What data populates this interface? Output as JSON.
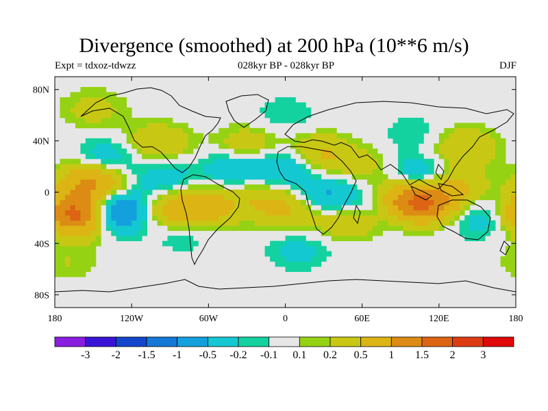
{
  "title": "Divergence (smoothed) at 200 hPa (10**6 m/s)",
  "left_string": "Expt = tdxoz-tdwzz",
  "center_string": "028kyr BP - 028kyr BP",
  "right_string": "DJF",
  "chart_data": {
    "type": "heatmap",
    "title": "Divergence (smoothed) at 200 hPa (10**6 m/s)",
    "xlabel": "",
    "ylabel": "",
    "x_range": [
      -180,
      180
    ],
    "y_range": [
      -90,
      90
    ],
    "x_ticks": [
      {
        "value": -180,
        "label": "180"
      },
      {
        "value": -120,
        "label": "120W"
      },
      {
        "value": -60,
        "label": "60W"
      },
      {
        "value": 0,
        "label": "0"
      },
      {
        "value": 60,
        "label": "60E"
      },
      {
        "value": 120,
        "label": "120E"
      },
      {
        "value": 180,
        "label": "180"
      }
    ],
    "y_ticks": [
      {
        "value": 80,
        "label": "80N"
      },
      {
        "value": 40,
        "label": "40N"
      },
      {
        "value": 0,
        "label": "0"
      },
      {
        "value": -40,
        "label": "40S"
      },
      {
        "value": -80,
        "label": "80S"
      }
    ],
    "colorbar": {
      "colors": [
        "#8a1ee0",
        "#3a14d6",
        "#1446cc",
        "#1478d6",
        "#14a0dc",
        "#14c8d2",
        "#14d2a0",
        "#e6e6e6",
        "#96d214",
        "#c8c814",
        "#dcb414",
        "#dc8c14",
        "#dc6414",
        "#dc3c14",
        "#e00a0a"
      ],
      "labels": [
        "-3",
        "-2",
        "-1.5",
        "-1",
        "-0.5",
        "-0.2",
        "-0.1",
        "0.1",
        "0.2",
        "0.5",
        "1",
        "1.5",
        "2",
        "3"
      ]
    },
    "anomaly_field": [
      {
        "lon": -160,
        "lat": -17,
        "value": 2.0
      },
      {
        "lon": -135,
        "lat": -15,
        "value": -1.5
      },
      {
        "lon": -150,
        "lat": 8,
        "value": 1.2
      },
      {
        "lon": -140,
        "lat": 25,
        "value": -0.5
      },
      {
        "lon": -150,
        "lat": 65,
        "value": 0.3
      },
      {
        "lon": -100,
        "lat": 38,
        "value": 0.5
      },
      {
        "lon": -95,
        "lat": 10,
        "value": -0.4
      },
      {
        "lon": -90,
        "lat": -15,
        "value": 0.6
      },
      {
        "lon": -80,
        "lat": -30,
        "value": -0.3
      },
      {
        "lon": -65,
        "lat": -12,
        "value": 0.8
      },
      {
        "lon": -40,
        "lat": 20,
        "value": -0.5
      },
      {
        "lon": -30,
        "lat": 35,
        "value": 0.5
      },
      {
        "lon": -20,
        "lat": -5,
        "value": 0.4
      },
      {
        "lon": 0,
        "lat": 20,
        "value": -0.6
      },
      {
        "lon": 5,
        "lat": -15,
        "value": 0.5
      },
      {
        "lon": 25,
        "lat": 30,
        "value": 0.6
      },
      {
        "lon": 35,
        "lat": -5,
        "value": -0.7
      },
      {
        "lon": 50,
        "lat": -20,
        "value": 0.6
      },
      {
        "lon": 60,
        "lat": 20,
        "value": 0.3
      },
      {
        "lon": 75,
        "lat": -10,
        "value": -0.5
      },
      {
        "lon": 95,
        "lat": -5,
        "value": 1.5
      },
      {
        "lon": 105,
        "lat": 10,
        "value": -0.8
      },
      {
        "lon": 115,
        "lat": -10,
        "value": 0.8
      },
      {
        "lon": 130,
        "lat": 5,
        "value": 0.6
      },
      {
        "lon": 140,
        "lat": 35,
        "value": 0.5
      },
      {
        "lon": 150,
        "lat": -20,
        "value": -0.4
      },
      {
        "lon": 100,
        "lat": 45,
        "value": -0.2
      },
      {
        "lon": 0,
        "lat": 60,
        "value": -0.2
      },
      {
        "lon": 10,
        "lat": -45,
        "value": -0.3
      },
      {
        "lon": -170,
        "lat": -55,
        "value": 0.2
      }
    ]
  }
}
